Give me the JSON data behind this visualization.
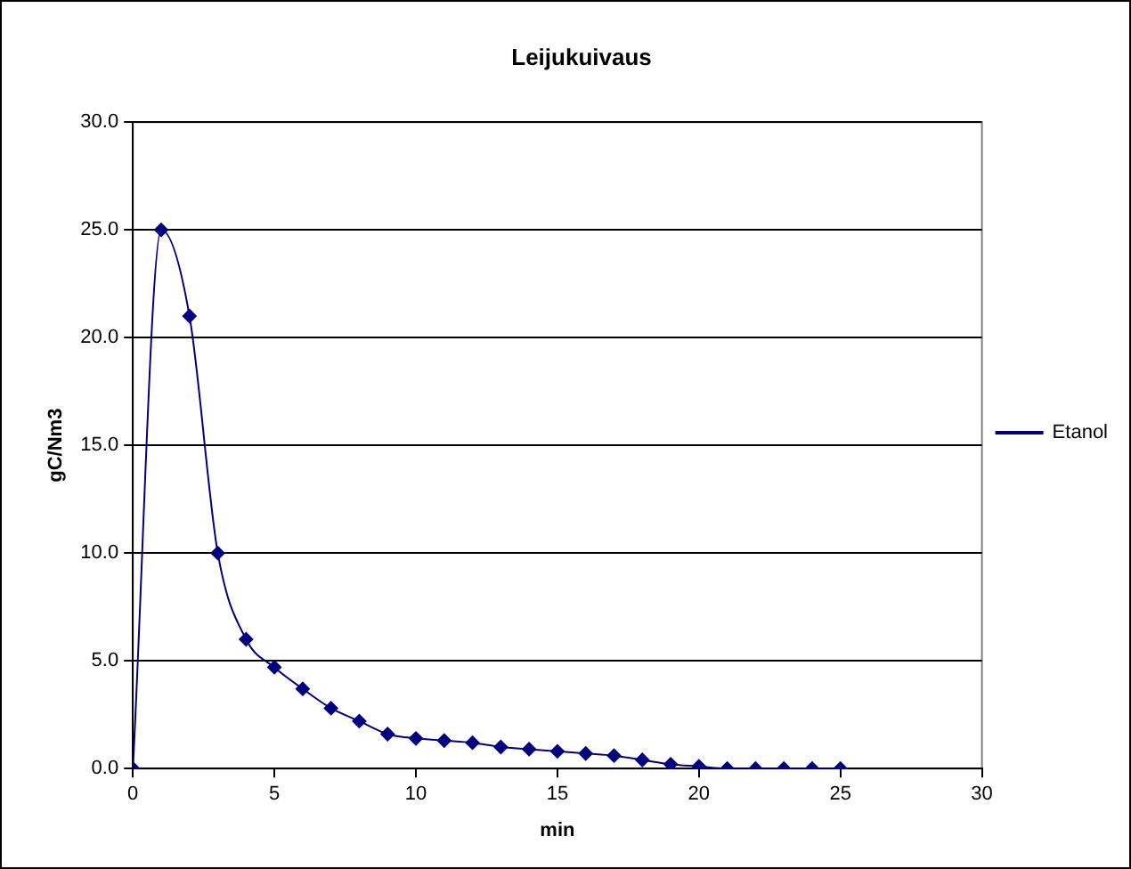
{
  "chart_data": {
    "type": "line",
    "title": "Leijukuivaus",
    "xlabel": "min",
    "ylabel": "gC/Nm3",
    "x": [
      0,
      1,
      2,
      3,
      4,
      5,
      6,
      7,
      8,
      9,
      10,
      11,
      12,
      13,
      14,
      15,
      16,
      17,
      18,
      19,
      20,
      21,
      22,
      23,
      24,
      25
    ],
    "series": [
      {
        "name": "Etanol",
        "color": "#000080",
        "values": [
          0,
          25,
          21,
          10,
          6,
          4.7,
          3.7,
          2.8,
          2.2,
          1.6,
          1.4,
          1.3,
          1.2,
          1.0,
          0.9,
          0.8,
          0.7,
          0.6,
          0.4,
          0.2,
          0.1,
          0,
          0,
          0,
          0,
          0
        ]
      }
    ],
    "xlim": [
      0,
      30
    ],
    "xticks": [
      0,
      5,
      10,
      15,
      20,
      25,
      30
    ],
    "ylim": [
      0,
      30
    ],
    "yticks": [
      {
        "value": 0,
        "label": "0.0"
      },
      {
        "value": 5,
        "label": "5.0"
      },
      {
        "value": 10,
        "label": "10.0"
      },
      {
        "value": 15,
        "label": "15.0"
      },
      {
        "value": 20,
        "label": "20.0"
      },
      {
        "value": 25,
        "label": "25.0"
      },
      {
        "value": 30,
        "label": "30.0"
      }
    ],
    "grid": "y",
    "legend": "right",
    "marker": "diamond",
    "line_style": "solid"
  }
}
